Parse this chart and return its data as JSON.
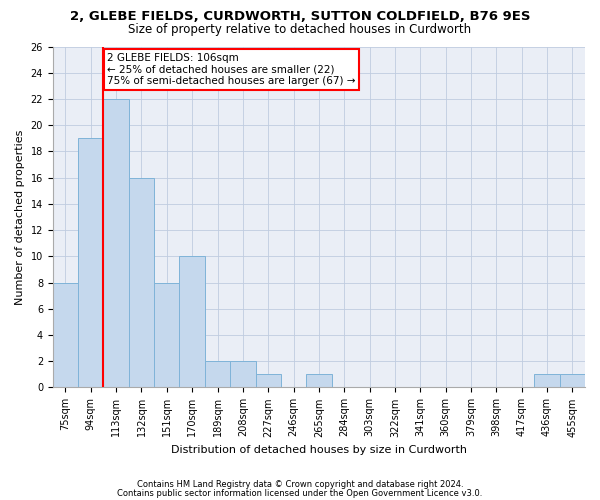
{
  "title": "2, GLEBE FIELDS, CURDWORTH, SUTTON COLDFIELD, B76 9ES",
  "subtitle": "Size of property relative to detached houses in Curdworth",
  "xlabel": "Distribution of detached houses by size in Curdworth",
  "ylabel": "Number of detached properties",
  "categories": [
    "75sqm",
    "94sqm",
    "113sqm",
    "132sqm",
    "151sqm",
    "170sqm",
    "189sqm",
    "208sqm",
    "227sqm",
    "246sqm",
    "265sqm",
    "284sqm",
    "303sqm",
    "322sqm",
    "341sqm",
    "360sqm",
    "379sqm",
    "398sqm",
    "417sqm",
    "436sqm",
    "455sqm"
  ],
  "values": [
    8,
    19,
    22,
    16,
    8,
    10,
    2,
    2,
    1,
    0,
    1,
    0,
    0,
    0,
    0,
    0,
    0,
    0,
    0,
    1,
    1
  ],
  "bar_color": "#c5d8ed",
  "bar_edge_color": "#7fb3d8",
  "redline_x": 1.5,
  "annotation_text": "2 GLEBE FIELDS: 106sqm\n← 25% of detached houses are smaller (22)\n75% of semi-detached houses are larger (67) →",
  "annotation_box_color": "white",
  "annotation_box_edge_color": "red",
  "redline_color": "red",
  "ylim": [
    0,
    26
  ],
  "yticks": [
    0,
    2,
    4,
    6,
    8,
    10,
    12,
    14,
    16,
    18,
    20,
    22,
    24,
    26
  ],
  "grid_color": "#c0cce0",
  "background_color": "#eaeef6",
  "footer_line1": "Contains HM Land Registry data © Crown copyright and database right 2024.",
  "footer_line2": "Contains public sector information licensed under the Open Government Licence v3.0.",
  "title_fontsize": 9.5,
  "subtitle_fontsize": 8.5,
  "annotation_fontsize": 7.5,
  "axis_label_fontsize": 8,
  "tick_fontsize": 7
}
